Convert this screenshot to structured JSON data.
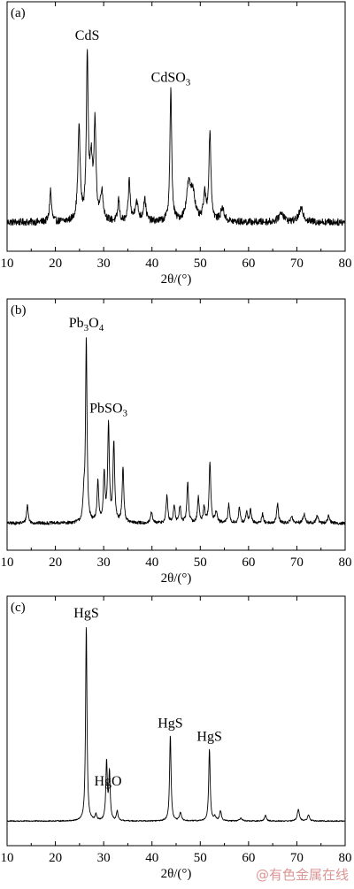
{
  "chart_data": [
    {
      "type": "line",
      "panel_label": "(a)",
      "xlabel": "2θ/(°)",
      "xlim": [
        10,
        80
      ],
      "ticks": [
        10,
        20,
        30,
        40,
        50,
        60,
        70,
        80
      ],
      "baseline": 0.07,
      "noise": 0.022,
      "peaks": [
        {
          "x": 19.0,
          "h": 0.2,
          "w": 0.22
        },
        {
          "x": 24.9,
          "h": 0.58,
          "w": 0.28
        },
        {
          "x": 26.6,
          "h": 1.0,
          "w": 0.22
        },
        {
          "x": 27.4,
          "h": 0.36,
          "w": 0.35
        },
        {
          "x": 28.2,
          "h": 0.58,
          "w": 0.24
        },
        {
          "x": 29.6,
          "h": 0.18,
          "w": 0.35
        },
        {
          "x": 33.1,
          "h": 0.14,
          "w": 0.2
        },
        {
          "x": 35.3,
          "h": 0.26,
          "w": 0.22
        },
        {
          "x": 36.8,
          "h": 0.12,
          "w": 0.4
        },
        {
          "x": 38.5,
          "h": 0.14,
          "w": 0.3
        },
        {
          "x": 43.9,
          "h": 0.82,
          "w": 0.22
        },
        {
          "x": 47.6,
          "h": 0.22,
          "w": 0.55
        },
        {
          "x": 48.5,
          "h": 0.16,
          "w": 0.5
        },
        {
          "x": 50.9,
          "h": 0.16,
          "w": 0.3
        },
        {
          "x": 52.0,
          "h": 0.55,
          "w": 0.25
        },
        {
          "x": 54.6,
          "h": 0.08,
          "w": 0.45
        },
        {
          "x": 66.8,
          "h": 0.06,
          "w": 0.6
        },
        {
          "x": 70.9,
          "h": 0.08,
          "w": 0.6
        }
      ],
      "annotations": [
        {
          "x": 26.6,
          "parts": [
            {
              "t": "CdS",
              "sub": false
            }
          ]
        },
        {
          "x": 43.9,
          "parts": [
            {
              "t": "CdSO",
              "sub": false
            },
            {
              "t": "3",
              "sub": true
            }
          ]
        }
      ]
    },
    {
      "type": "line",
      "panel_label": "(b)",
      "xlabel": "2θ/(°)",
      "xlim": [
        10,
        80
      ],
      "ticks": [
        10,
        20,
        30,
        40,
        50,
        60,
        70,
        80
      ],
      "baseline": 0.05,
      "noise": 0.009,
      "peaks": [
        {
          "x": 14.2,
          "h": 0.1,
          "w": 0.2
        },
        {
          "x": 25.9,
          "h": 0.12,
          "w": 0.2
        },
        {
          "x": 26.4,
          "h": 1.0,
          "w": 0.18
        },
        {
          "x": 28.8,
          "h": 0.22,
          "w": 0.2
        },
        {
          "x": 30.1,
          "h": 0.26,
          "w": 0.2
        },
        {
          "x": 31.0,
          "h": 0.53,
          "w": 0.2
        },
        {
          "x": 32.1,
          "h": 0.43,
          "w": 0.2
        },
        {
          "x": 34.0,
          "h": 0.3,
          "w": 0.2
        },
        {
          "x": 39.9,
          "h": 0.06,
          "w": 0.2
        },
        {
          "x": 43.1,
          "h": 0.15,
          "w": 0.2
        },
        {
          "x": 44.6,
          "h": 0.1,
          "w": 0.2
        },
        {
          "x": 45.8,
          "h": 0.09,
          "w": 0.2
        },
        {
          "x": 47.4,
          "h": 0.22,
          "w": 0.2
        },
        {
          "x": 49.6,
          "h": 0.14,
          "w": 0.2
        },
        {
          "x": 50.8,
          "h": 0.09,
          "w": 0.2
        },
        {
          "x": 52.0,
          "h": 0.33,
          "w": 0.2
        },
        {
          "x": 53.3,
          "h": 0.06,
          "w": 0.25
        },
        {
          "x": 55.9,
          "h": 0.1,
          "w": 0.2
        },
        {
          "x": 58.1,
          "h": 0.08,
          "w": 0.2
        },
        {
          "x": 59.6,
          "h": 0.06,
          "w": 0.2
        },
        {
          "x": 60.4,
          "h": 0.07,
          "w": 0.2
        },
        {
          "x": 62.9,
          "h": 0.05,
          "w": 0.2
        },
        {
          "x": 66.0,
          "h": 0.11,
          "w": 0.2
        },
        {
          "x": 68.9,
          "h": 0.04,
          "w": 0.25
        },
        {
          "x": 71.5,
          "h": 0.05,
          "w": 0.25
        },
        {
          "x": 74.2,
          "h": 0.04,
          "w": 0.25
        },
        {
          "x": 76.6,
          "h": 0.04,
          "w": 0.25
        }
      ],
      "annotations": [
        {
          "x": 26.4,
          "parts": [
            {
              "t": "Pb",
              "sub": false
            },
            {
              "t": "3",
              "sub": true
            },
            {
              "t": "O",
              "sub": false
            },
            {
              "t": "4",
              "sub": true
            }
          ]
        },
        {
          "x": 31.0,
          "parts": [
            {
              "t": "PbSO",
              "sub": false
            },
            {
              "t": "3",
              "sub": true
            }
          ]
        }
      ]
    },
    {
      "type": "line",
      "panel_label": "(c)",
      "xlabel": "2θ/(°)",
      "xlim": [
        10,
        80
      ],
      "ticks": [
        10,
        20,
        30,
        40,
        50,
        60,
        70,
        80
      ],
      "baseline": 0.035,
      "noise": 0.003,
      "peaks": [
        {
          "x": 26.4,
          "h": 1.0,
          "w": 0.17
        },
        {
          "x": 28.4,
          "h": 0.03,
          "w": 0.2
        },
        {
          "x": 30.6,
          "h": 0.3,
          "w": 0.18
        },
        {
          "x": 31.2,
          "h": 0.24,
          "w": 0.18
        },
        {
          "x": 32.8,
          "h": 0.05,
          "w": 0.18
        },
        {
          "x": 43.8,
          "h": 0.44,
          "w": 0.18
        },
        {
          "x": 45.9,
          "h": 0.04,
          "w": 0.25
        },
        {
          "x": 51.9,
          "h": 0.37,
          "w": 0.18
        },
        {
          "x": 53.0,
          "h": 0.02,
          "w": 0.25
        },
        {
          "x": 54.2,
          "h": 0.05,
          "w": 0.22
        },
        {
          "x": 58.4,
          "h": 0.015,
          "w": 0.3
        },
        {
          "x": 63.5,
          "h": 0.03,
          "w": 0.22
        },
        {
          "x": 70.3,
          "h": 0.06,
          "w": 0.25
        },
        {
          "x": 72.4,
          "h": 0.03,
          "w": 0.25
        }
      ],
      "annotations": [
        {
          "x": 26.4,
          "parts": [
            {
              "t": "HgS",
              "sub": false
            }
          ]
        },
        {
          "x": 30.9,
          "parts": [
            {
              "t": "HgO",
              "sub": false
            }
          ]
        },
        {
          "x": 43.8,
          "parts": [
            {
              "t": "HgS",
              "sub": false
            }
          ]
        },
        {
          "x": 51.9,
          "parts": [
            {
              "t": "HgS",
              "sub": false
            }
          ]
        }
      ]
    }
  ],
  "watermark": "@有色金属在线"
}
